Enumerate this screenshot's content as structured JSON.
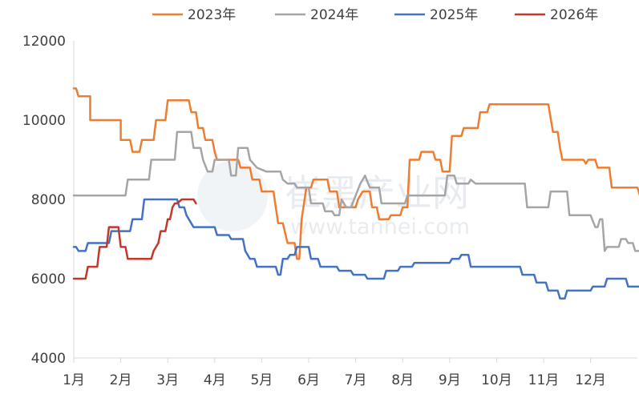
{
  "chart_data": {
    "type": "line",
    "title": "",
    "xlabel": "",
    "ylabel": "",
    "ylim": [
      4000,
      12000
    ],
    "yticks": [
      "12000",
      "10000",
      "8000",
      "6000",
      "4000"
    ],
    "categories": [
      "1月",
      "2月",
      "3月",
      "4月",
      "5月",
      "6月",
      "7月",
      "8月",
      "9月",
      "10月",
      "11月",
      "12月"
    ],
    "x_unit": "month index (1 = 1月, 13 = year end)",
    "grid": false,
    "legend_position": "top",
    "watermark": {
      "cn": "崔黑产业网",
      "en": "www.tanhei.com"
    },
    "series": [
      {
        "name": "2023年",
        "color": "#ED7D31",
        "points": [
          [
            1.0,
            10800
          ],
          [
            1.05,
            10800
          ],
          [
            1.1,
            10600
          ],
          [
            1.35,
            10600
          ],
          [
            1.35,
            10000
          ],
          [
            2.0,
            10000
          ],
          [
            2.0,
            9500
          ],
          [
            2.2,
            9500
          ],
          [
            2.25,
            9200
          ],
          [
            2.4,
            9200
          ],
          [
            2.45,
            9500
          ],
          [
            2.7,
            9500
          ],
          [
            2.75,
            10000
          ],
          [
            2.95,
            10000
          ],
          [
            3.0,
            10500
          ],
          [
            3.45,
            10500
          ],
          [
            3.5,
            10200
          ],
          [
            3.6,
            10200
          ],
          [
            3.65,
            9800
          ],
          [
            3.75,
            9800
          ],
          [
            3.8,
            9500
          ],
          [
            3.95,
            9500
          ],
          [
            4.0,
            9200
          ],
          [
            4.05,
            9000
          ],
          [
            4.5,
            9000
          ],
          [
            4.55,
            8800
          ],
          [
            4.75,
            8800
          ],
          [
            4.8,
            8500
          ],
          [
            4.95,
            8500
          ],
          [
            5.0,
            8200
          ],
          [
            5.25,
            8200
          ],
          [
            5.35,
            7400
          ],
          [
            5.45,
            7400
          ],
          [
            5.55,
            6900
          ],
          [
            5.7,
            6900
          ],
          [
            5.75,
            6500
          ],
          [
            5.8,
            6500
          ],
          [
            5.85,
            7500
          ],
          [
            5.95,
            8300
          ],
          [
            6.05,
            8300
          ],
          [
            6.1,
            8500
          ],
          [
            6.4,
            8500
          ],
          [
            6.45,
            8200
          ],
          [
            6.6,
            8200
          ],
          [
            6.65,
            7800
          ],
          [
            7.0,
            7800
          ],
          [
            7.05,
            8000
          ],
          [
            7.15,
            8200
          ],
          [
            7.3,
            8200
          ],
          [
            7.35,
            7800
          ],
          [
            7.45,
            7800
          ],
          [
            7.5,
            7500
          ],
          [
            7.7,
            7500
          ],
          [
            7.75,
            7600
          ],
          [
            7.95,
            7600
          ],
          [
            8.0,
            7800
          ],
          [
            8.1,
            7800
          ],
          [
            8.15,
            9000
          ],
          [
            8.35,
            9000
          ],
          [
            8.4,
            9200
          ],
          [
            8.65,
            9200
          ],
          [
            8.7,
            9000
          ],
          [
            8.8,
            9000
          ],
          [
            8.85,
            8700
          ],
          [
            9.0,
            8700
          ],
          [
            9.05,
            9600
          ],
          [
            9.25,
            9600
          ],
          [
            9.3,
            9800
          ],
          [
            9.6,
            9800
          ],
          [
            9.65,
            10200
          ],
          [
            9.8,
            10200
          ],
          [
            9.85,
            10400
          ],
          [
            11.1,
            10400
          ],
          [
            11.2,
            9700
          ],
          [
            11.3,
            9700
          ],
          [
            11.35,
            9300
          ],
          [
            11.4,
            9000
          ],
          [
            11.85,
            9000
          ],
          [
            11.9,
            8900
          ],
          [
            11.95,
            9000
          ],
          [
            12.1,
            9000
          ],
          [
            12.15,
            8800
          ],
          [
            12.4,
            8800
          ],
          [
            12.45,
            8300
          ],
          [
            13.0,
            8300
          ],
          [
            13.05,
            8100
          ],
          [
            13.15,
            8100
          ]
        ]
      },
      {
        "name": "2024年",
        "color": "#A5A5A5",
        "points": [
          [
            1.0,
            8100
          ],
          [
            2.1,
            8100
          ],
          [
            2.15,
            8500
          ],
          [
            2.6,
            8500
          ],
          [
            2.65,
            9000
          ],
          [
            3.15,
            9000
          ],
          [
            3.2,
            9700
          ],
          [
            3.5,
            9700
          ],
          [
            3.55,
            9300
          ],
          [
            3.7,
            9300
          ],
          [
            3.75,
            9000
          ],
          [
            3.85,
            8700
          ],
          [
            3.95,
            8700
          ],
          [
            4.0,
            9000
          ],
          [
            4.3,
            9000
          ],
          [
            4.35,
            8600
          ],
          [
            4.45,
            8600
          ],
          [
            4.5,
            9300
          ],
          [
            4.7,
            9300
          ],
          [
            4.75,
            9000
          ],
          [
            4.9,
            8800
          ],
          [
            5.1,
            8700
          ],
          [
            5.4,
            8700
          ],
          [
            5.45,
            8500
          ],
          [
            5.55,
            8400
          ],
          [
            5.7,
            8400
          ],
          [
            5.75,
            8300
          ],
          [
            6.0,
            8300
          ],
          [
            6.05,
            7900
          ],
          [
            6.3,
            7900
          ],
          [
            6.35,
            7700
          ],
          [
            6.5,
            7700
          ],
          [
            6.55,
            7600
          ],
          [
            6.65,
            7600
          ],
          [
            6.7,
            8000
          ],
          [
            6.8,
            7800
          ],
          [
            6.9,
            7800
          ],
          [
            7.0,
            8100
          ],
          [
            7.1,
            8400
          ],
          [
            7.2,
            8600
          ],
          [
            7.3,
            8300
          ],
          [
            7.5,
            8300
          ],
          [
            7.55,
            7900
          ],
          [
            8.05,
            7900
          ],
          [
            8.1,
            8100
          ],
          [
            8.9,
            8100
          ],
          [
            8.95,
            8600
          ],
          [
            9.1,
            8600
          ],
          [
            9.15,
            8400
          ],
          [
            9.4,
            8400
          ],
          [
            9.45,
            8500
          ],
          [
            9.55,
            8400
          ],
          [
            10.6,
            8400
          ],
          [
            10.65,
            7800
          ],
          [
            11.1,
            7800
          ],
          [
            11.15,
            8200
          ],
          [
            11.5,
            8200
          ],
          [
            11.55,
            7600
          ],
          [
            12.0,
            7600
          ],
          [
            12.1,
            7300
          ],
          [
            12.15,
            7300
          ],
          [
            12.2,
            7500
          ],
          [
            12.25,
            7500
          ],
          [
            12.3,
            6700
          ],
          [
            12.35,
            6800
          ],
          [
            12.6,
            6800
          ],
          [
            12.65,
            7000
          ],
          [
            12.75,
            7000
          ],
          [
            12.8,
            6900
          ],
          [
            12.9,
            6900
          ],
          [
            12.95,
            6700
          ],
          [
            13.05,
            6700
          ],
          [
            13.1,
            6800
          ],
          [
            13.15,
            6800
          ]
        ]
      },
      {
        "name": "2025年",
        "color": "#4472C4",
        "points": [
          [
            1.0,
            6800
          ],
          [
            1.05,
            6800
          ],
          [
            1.1,
            6700
          ],
          [
            1.25,
            6700
          ],
          [
            1.3,
            6900
          ],
          [
            1.75,
            6900
          ],
          [
            1.8,
            7200
          ],
          [
            2.2,
            7200
          ],
          [
            2.25,
            7500
          ],
          [
            2.45,
            7500
          ],
          [
            2.5,
            8000
          ],
          [
            3.2,
            8000
          ],
          [
            3.25,
            7800
          ],
          [
            3.35,
            7800
          ],
          [
            3.4,
            7600
          ],
          [
            3.5,
            7400
          ],
          [
            3.55,
            7300
          ],
          [
            4.0,
            7300
          ],
          [
            4.05,
            7100
          ],
          [
            4.3,
            7100
          ],
          [
            4.35,
            7000
          ],
          [
            4.6,
            7000
          ],
          [
            4.65,
            6700
          ],
          [
            4.75,
            6500
          ],
          [
            4.85,
            6500
          ],
          [
            4.9,
            6300
          ],
          [
            5.3,
            6300
          ],
          [
            5.35,
            6100
          ],
          [
            5.4,
            6100
          ],
          [
            5.45,
            6500
          ],
          [
            5.55,
            6500
          ],
          [
            5.6,
            6600
          ],
          [
            5.7,
            6600
          ],
          [
            5.75,
            6800
          ],
          [
            6.0,
            6800
          ],
          [
            6.05,
            6500
          ],
          [
            6.2,
            6500
          ],
          [
            6.25,
            6300
          ],
          [
            6.6,
            6300
          ],
          [
            6.65,
            6200
          ],
          [
            6.9,
            6200
          ],
          [
            6.95,
            6100
          ],
          [
            7.2,
            6100
          ],
          [
            7.25,
            6000
          ],
          [
            7.6,
            6000
          ],
          [
            7.65,
            6200
          ],
          [
            7.9,
            6200
          ],
          [
            7.95,
            6300
          ],
          [
            8.2,
            6300
          ],
          [
            8.25,
            6400
          ],
          [
            9.0,
            6400
          ],
          [
            9.05,
            6500
          ],
          [
            9.2,
            6500
          ],
          [
            9.25,
            6600
          ],
          [
            9.4,
            6600
          ],
          [
            9.45,
            6300
          ],
          [
            10.5,
            6300
          ],
          [
            10.55,
            6100
          ],
          [
            10.8,
            6100
          ],
          [
            10.85,
            5900
          ],
          [
            11.05,
            5900
          ],
          [
            11.1,
            5700
          ],
          [
            11.3,
            5700
          ],
          [
            11.35,
            5500
          ],
          [
            11.45,
            5500
          ],
          [
            11.5,
            5700
          ],
          [
            12.0,
            5700
          ],
          [
            12.05,
            5800
          ],
          [
            12.3,
            5800
          ],
          [
            12.35,
            6000
          ],
          [
            12.75,
            6000
          ],
          [
            12.8,
            5800
          ],
          [
            13.1,
            5800
          ],
          [
            13.15,
            6000
          ]
        ]
      },
      {
        "name": "2026年",
        "color": "#C0392B",
        "points": [
          [
            1.0,
            6000
          ],
          [
            1.25,
            6000
          ],
          [
            1.3,
            6300
          ],
          [
            1.5,
            6300
          ],
          [
            1.55,
            6800
          ],
          [
            1.7,
            6800
          ],
          [
            1.75,
            7300
          ],
          [
            1.95,
            7300
          ],
          [
            2.0,
            6800
          ],
          [
            2.1,
            6800
          ],
          [
            2.15,
            6500
          ],
          [
            2.65,
            6500
          ],
          [
            2.7,
            6700
          ],
          [
            2.8,
            6900
          ],
          [
            2.85,
            7200
          ],
          [
            2.95,
            7200
          ],
          [
            3.0,
            7500
          ],
          [
            3.05,
            7500
          ],
          [
            3.1,
            7800
          ],
          [
            3.15,
            7900
          ],
          [
            3.2,
            7900
          ],
          [
            3.3,
            8000
          ],
          [
            3.55,
            8000
          ],
          [
            3.6,
            7900
          ]
        ]
      }
    ]
  }
}
